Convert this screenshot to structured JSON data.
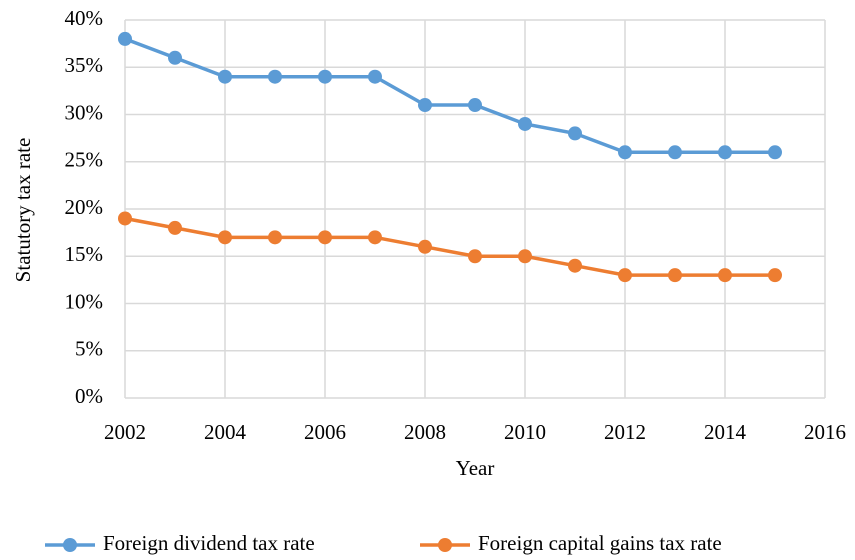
{
  "chart_data": {
    "type": "line",
    "x_label": "Year",
    "y_label": "Statutory tax rate",
    "x": [
      2002,
      2003,
      2004,
      2005,
      2006,
      2007,
      2008,
      2009,
      2010,
      2011,
      2012,
      2013,
      2014,
      2015
    ],
    "series": [
      {
        "name": "Foreign dividend tax rate",
        "color": "#5b9bd5",
        "values": [
          38,
          36,
          34,
          34,
          34,
          34,
          31,
          31,
          29,
          28,
          26,
          26,
          26,
          26
        ]
      },
      {
        "name": "Foreign capital gains tax rate",
        "color": "#ed7d31",
        "values": [
          19,
          18,
          17,
          17,
          17,
          17,
          16,
          15,
          15,
          14,
          13,
          13,
          13,
          13
        ]
      }
    ],
    "xlim": [
      2002,
      2016
    ],
    "xticks": [
      2002,
      2004,
      2006,
      2008,
      2010,
      2012,
      2014,
      2016
    ],
    "ylim": [
      0,
      40
    ],
    "yticks": [
      {
        "value": 0,
        "label": "0%"
      },
      {
        "value": 5,
        "label": "5%"
      },
      {
        "value": 10,
        "label": "10%"
      },
      {
        "value": 15,
        "label": "15%"
      },
      {
        "value": 20,
        "label": "20%"
      },
      {
        "value": 25,
        "label": "25%"
      },
      {
        "value": 30,
        "label": "30%"
      },
      {
        "value": 35,
        "label": "35%"
      },
      {
        "value": 40,
        "label": "40%"
      }
    ],
    "grid": true,
    "legend": "bottom"
  }
}
